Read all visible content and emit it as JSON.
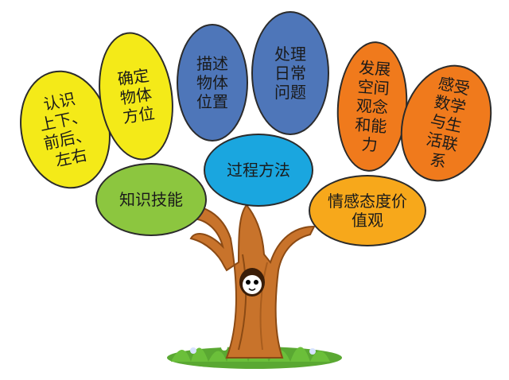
{
  "colors": {
    "trunk": "#c8732b",
    "trunk_dark": "#8b4a14",
    "grass": "#6bbf3a",
    "yellow": "#f4ea18",
    "blue": "#4e76b9",
    "cyan": "#1aa6df",
    "green": "#8cc63f",
    "orange": "#f07a1c",
    "gold": "#f7a81b"
  },
  "nodes": {
    "knowledge": "知识技能",
    "process": "过程方法",
    "emotion": "情感态度价\n值观",
    "leaf_recognize": "认识\n上下、\n前后、\n左右",
    "leaf_locate": "确定\n物体\n方位",
    "leaf_describe": "描述\n物体\n位置",
    "leaf_daily": "处理\n日常\n问题",
    "leaf_spatial": "发展\n空间\n观念\n和能\n力",
    "leaf_life": "感受\n数学\n与生\n活联\n系"
  },
  "icons": {
    "hole": "owl-in-hole-icon",
    "flowers": "flower-icon"
  }
}
